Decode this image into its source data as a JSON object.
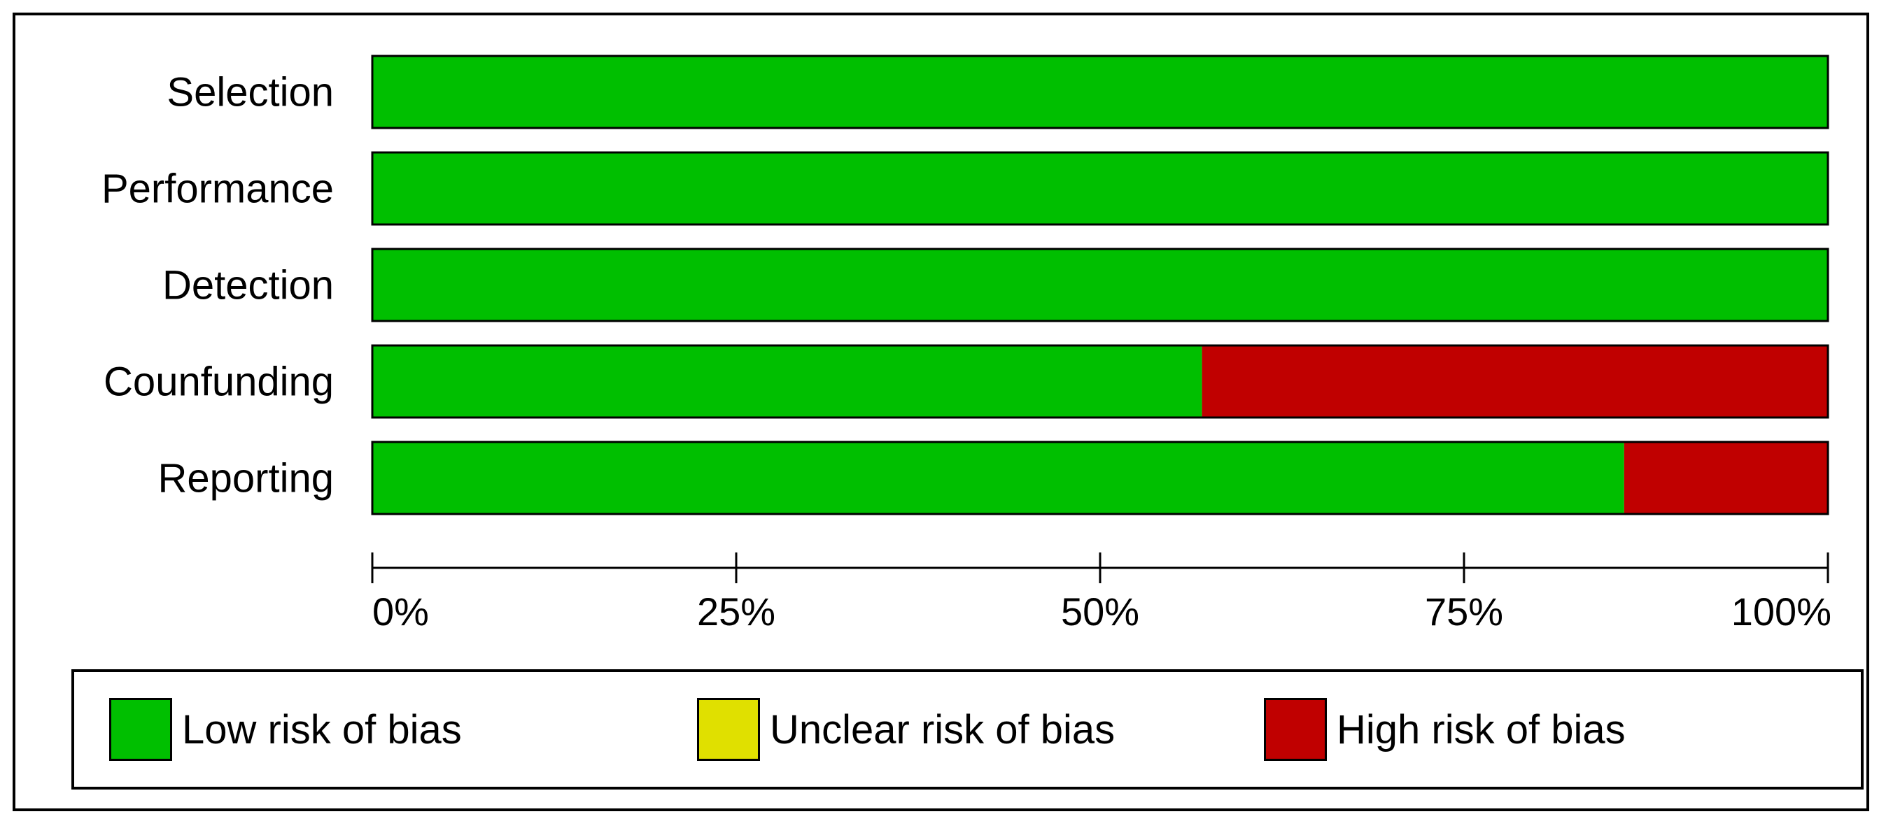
{
  "chart_data": {
    "type": "bar",
    "orientation": "horizontal",
    "stacked": true,
    "categories": [
      "Selection",
      "Performance",
      "Detection",
      "Counfunding",
      "Reporting"
    ],
    "series": [
      {
        "name": "Low risk of bias",
        "color": "#00bf00",
        "values": [
          100,
          100,
          100,
          57,
          86
        ]
      },
      {
        "name": "Unclear risk of bias",
        "color": "#e0e000",
        "values": [
          0,
          0,
          0,
          0,
          0
        ]
      },
      {
        "name": "High risk of bias",
        "color": "#c00000",
        "values": [
          0,
          0,
          0,
          43,
          14
        ]
      }
    ],
    "xlim": [
      0,
      100
    ],
    "xticks": [
      "0%",
      "25%",
      "50%",
      "75%",
      "100%"
    ],
    "legend_position": "bottom",
    "grid": false
  },
  "legend": {
    "items": [
      {
        "label": "Low risk of bias",
        "color": "#00bf00"
      },
      {
        "label": "Unclear risk of bias",
        "color": "#e0e000"
      },
      {
        "label": "High risk of bias",
        "color": "#c00000"
      }
    ]
  }
}
